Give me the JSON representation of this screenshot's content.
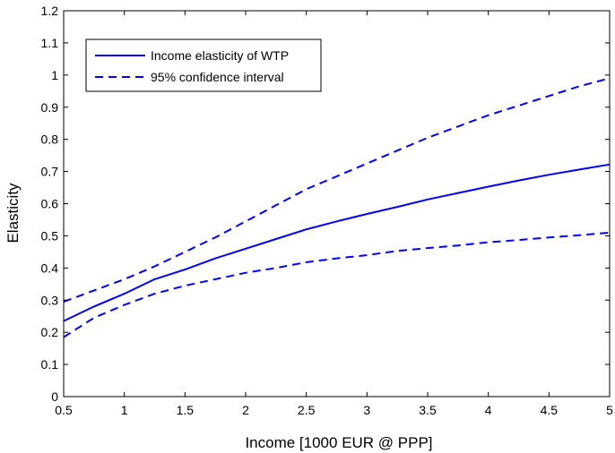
{
  "chart_data": {
    "type": "line",
    "xlabel": "Income [1000 EUR @ PPP]",
    "ylabel": "Elasticity",
    "xlim": [
      0.5,
      5
    ],
    "ylim": [
      0,
      1.2
    ],
    "xticks": [
      0.5,
      1,
      1.5,
      2,
      2.5,
      3,
      3.5,
      4,
      4.5,
      5
    ],
    "xtick_labels": [
      "0.5",
      "1",
      "1.5",
      "2",
      "2.5",
      "3",
      "3.5",
      "4",
      "4.5",
      "5"
    ],
    "yticks": [
      0,
      0.1,
      0.2,
      0.3,
      0.4,
      0.5,
      0.6,
      0.7,
      0.8,
      0.9,
      1,
      1.1,
      1.2
    ],
    "ytick_labels": [
      "0",
      "0.1",
      "0.2",
      "0.3",
      "0.4",
      "0.5",
      "0.6",
      "0.7",
      "0.8",
      "0.9",
      "1",
      "1.1",
      "1.2"
    ],
    "grid": false,
    "legend_position": "top-left",
    "color": "#0000ff",
    "x": [
      0.5,
      0.75,
      1,
      1.25,
      1.5,
      1.75,
      2,
      2.25,
      2.5,
      2.75,
      3,
      3.25,
      3.5,
      3.75,
      4,
      4.25,
      4.5,
      4.75,
      5
    ],
    "series": [
      {
        "name": "Income elasticity of WTP",
        "style": "solid",
        "values": [
          0.235,
          0.28,
          0.32,
          0.365,
          0.395,
          0.43,
          0.46,
          0.49,
          0.52,
          0.545,
          0.568,
          0.59,
          0.613,
          0.633,
          0.653,
          0.672,
          0.69,
          0.706,
          0.722
        ]
      },
      {
        "name": "95% confidence interval",
        "style": "dashed",
        "values": [
          0.295,
          0.33,
          0.365,
          0.405,
          0.45,
          0.495,
          0.545,
          0.595,
          0.645,
          0.685,
          0.725,
          0.765,
          0.805,
          0.84,
          0.875,
          0.905,
          0.935,
          0.965,
          0.99
        ]
      },
      {
        "name": "",
        "style": "dashed",
        "values": [
          0.185,
          0.245,
          0.285,
          0.32,
          0.345,
          0.365,
          0.385,
          0.4,
          0.418,
          0.43,
          0.44,
          0.453,
          0.462,
          0.47,
          0.48,
          0.487,
          0.495,
          0.502,
          0.51
        ]
      }
    ]
  }
}
